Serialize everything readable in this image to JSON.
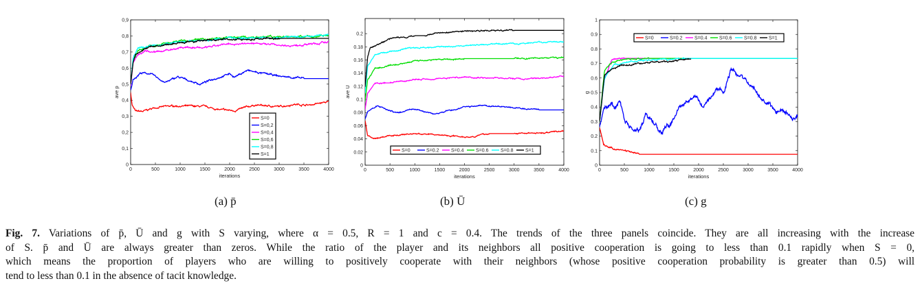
{
  "chart_data": [
    {
      "type": "line",
      "panel": "a",
      "xlabel": "iterations",
      "ylabel": "ave p",
      "xlim": [
        0,
        4000
      ],
      "ylim": [
        0,
        0.9
      ],
      "xticks": [
        0,
        500,
        1000,
        1500,
        2000,
        2500,
        3000,
        3500,
        4000
      ],
      "xtick_labels": [
        "0",
        "500",
        "1000",
        "1500",
        "2000",
        "2500",
        "3000",
        "3500",
        "4000"
      ],
      "yticks": [
        0,
        0.1,
        0.2,
        0.3,
        0.4,
        0.5,
        0.6,
        0.7,
        0.8,
        0.9
      ],
      "ytick_labels": [
        "0",
        "0,1",
        "0,2",
        "0,3",
        "0,4",
        "0,5",
        "0,6",
        "0,7",
        "0,8",
        "0,9"
      ],
      "legend_placement": "lower-right-center, vertical",
      "series": [
        {
          "name": "S=0",
          "color": "#ff0000",
          "x": [
            0,
            30,
            100,
            250,
            500,
            900,
            1500,
            1800,
            2100,
            2500,
            3000,
            3300,
            3600,
            4000
          ],
          "y": [
            0.45,
            0.37,
            0.33,
            0.33,
            0.355,
            0.365,
            0.36,
            0.34,
            0.335,
            0.37,
            0.36,
            0.375,
            0.37,
            0.39
          ]
        },
        {
          "name": "S=0,2",
          "color": "#0000ff",
          "x": [
            0,
            50,
            200,
            400,
            700,
            950,
            1400,
            1700,
            2000,
            2100,
            2350,
            2600,
            3000,
            3500,
            4000
          ],
          "y": [
            0.46,
            0.53,
            0.57,
            0.565,
            0.51,
            0.545,
            0.5,
            0.535,
            0.565,
            0.545,
            0.585,
            0.57,
            0.55,
            0.535,
            0.535
          ]
        },
        {
          "name": "S=0,4",
          "color": "#ff00ff",
          "x": [
            0,
            50,
            150,
            300,
            600,
            1000,
            1500,
            2000,
            2500,
            3300,
            4000
          ],
          "y": [
            0.49,
            0.63,
            0.69,
            0.71,
            0.7,
            0.73,
            0.725,
            0.75,
            0.755,
            0.74,
            0.76
          ]
        },
        {
          "name": "S=0,6",
          "color": "#00dd00",
          "x": [
            0,
            50,
            150,
            400,
            1000,
            2000,
            3000,
            4000
          ],
          "y": [
            0.5,
            0.65,
            0.71,
            0.74,
            0.77,
            0.79,
            0.795,
            0.8
          ]
        },
        {
          "name": "S=0,8",
          "color": "#00ffff",
          "x": [
            0,
            50,
            150,
            400,
            1000,
            2000,
            3000,
            4000
          ],
          "y": [
            0.5,
            0.66,
            0.72,
            0.74,
            0.76,
            0.785,
            0.79,
            0.805
          ]
        },
        {
          "name": "S=1",
          "color": "#000000",
          "x": [
            0,
            50,
            100,
            400,
            1000,
            1500,
            2000,
            3000,
            4000
          ],
          "y": [
            0.5,
            0.64,
            0.69,
            0.735,
            0.755,
            0.77,
            0.78,
            0.785,
            0.785
          ]
        }
      ]
    },
    {
      "type": "line",
      "panel": "b",
      "xlabel": "iterations",
      "ylabel": "ave U",
      "xlim": [
        0,
        4000
      ],
      "ylim": [
        0,
        0.223
      ],
      "xticks": [
        0,
        500,
        1000,
        1500,
        2000,
        2500,
        3000,
        3500,
        4000
      ],
      "xtick_labels": [
        "0",
        "500",
        "1000",
        "1500",
        "2000",
        "2500",
        "3000",
        "3500",
        "4000"
      ],
      "yticks": [
        0,
        0.02,
        0.04,
        0.06,
        0.08,
        0.1,
        0.12,
        0.14,
        0.16,
        0.18,
        0.2
      ],
      "ytick_labels": [
        "0",
        "0.02",
        "0.04",
        "0.06",
        "0.08",
        "0.1",
        "0.12",
        "0.14",
        "0.16",
        "0.18",
        "0.2"
      ],
      "legend_placement": "bottom, horizontal",
      "series": [
        {
          "name": "S=0",
          "color": "#ff0000",
          "x": [
            0,
            50,
            150,
            300,
            500,
            1000,
            1500,
            2100,
            2500,
            3000,
            3500,
            4000
          ],
          "y": [
            0.068,
            0.045,
            0.04,
            0.042,
            0.045,
            0.048,
            0.046,
            0.043,
            0.048,
            0.048,
            0.049,
            0.052
          ]
        },
        {
          "name": "S=0.2",
          "color": "#0000ff",
          "x": [
            0,
            50,
            250,
            650,
            950,
            1400,
            2000,
            2350,
            3000,
            3500,
            4000
          ],
          "y": [
            0.07,
            0.082,
            0.09,
            0.079,
            0.086,
            0.078,
            0.088,
            0.091,
            0.087,
            0.084,
            0.084
          ]
        },
        {
          "name": "S=0.4",
          "color": "#ff00ff",
          "x": [
            0,
            50,
            200,
            500,
            1000,
            2000,
            3300,
            4000
          ],
          "y": [
            0.085,
            0.11,
            0.125,
            0.125,
            0.13,
            0.134,
            0.131,
            0.135
          ]
        },
        {
          "name": "S=0.6",
          "color": "#00dd00",
          "x": [
            0,
            50,
            200,
            600,
            1000,
            2000,
            3000,
            4000
          ],
          "y": [
            0.097,
            0.13,
            0.147,
            0.152,
            0.159,
            0.162,
            0.162,
            0.164
          ]
        },
        {
          "name": "S=0.8",
          "color": "#00ffff",
          "x": [
            0,
            50,
            200,
            600,
            1000,
            2000,
            3000,
            4000
          ],
          "y": [
            0.11,
            0.15,
            0.168,
            0.174,
            0.178,
            0.182,
            0.185,
            0.188
          ]
        },
        {
          "name": "S=1",
          "color": "#000000",
          "x": [
            0,
            50,
            100,
            500,
            1000,
            1200,
            1300,
            2000,
            3000,
            4000
          ],
          "y": [
            0.12,
            0.165,
            0.178,
            0.192,
            0.197,
            0.197,
            0.2,
            0.204,
            0.205,
            0.205
          ]
        }
      ]
    },
    {
      "type": "line",
      "panel": "c",
      "xlabel": "iterations",
      "ylabel": "g",
      "xlim": [
        0,
        4000
      ],
      "ylim": [
        0,
        1
      ],
      "xticks": [
        0,
        500,
        1000,
        1500,
        2000,
        2500,
        3000,
        3500,
        4000
      ],
      "xtick_labels": [
        "0",
        "500",
        "1000",
        "1500",
        "2000",
        "2500",
        "3000",
        "3500",
        "4000"
      ],
      "yticks": [
        0,
        0.1,
        0.2,
        0.3,
        0.4,
        0.5,
        0.6,
        0.7,
        0.8,
        0.9,
        1
      ],
      "ytick_labels": [
        "0",
        "0.1",
        "0.2",
        "0.3",
        "0.4",
        "0.5",
        "0.6",
        "0.7",
        "0.8",
        "0.9",
        "1"
      ],
      "legend_placement": "top, horizontal",
      "series": [
        {
          "name": "S=0",
          "color": "#ff0000",
          "x": [
            0,
            80,
            300,
            500,
            700,
            800,
            4000
          ],
          "y": [
            0.26,
            0.14,
            0.11,
            0.1,
            0.08,
            0.075,
            0.075
          ]
        },
        {
          "name": "S=0.2",
          "color": "#0000ff",
          "x": [
            0,
            100,
            250,
            300,
            400,
            500,
            700,
            800,
            950,
            1250,
            1400,
            1700,
            1900,
            2100,
            2350,
            2500,
            2650,
            3000,
            3300,
            3600,
            3800,
            3900,
            4000
          ],
          "y": [
            0.27,
            0.4,
            0.43,
            0.38,
            0.44,
            0.33,
            0.24,
            0.25,
            0.35,
            0.23,
            0.27,
            0.43,
            0.5,
            0.4,
            0.52,
            0.5,
            0.66,
            0.57,
            0.45,
            0.38,
            0.36,
            0.32,
            0.35
          ]
        },
        {
          "name": "S=0.4",
          "color": "#ff00ff",
          "x": [
            0,
            100,
            250,
            500,
            4000
          ],
          "y": [
            0.3,
            0.6,
            0.73,
            0.735,
            0.735
          ]
        },
        {
          "name": "S=0.6",
          "color": "#00dd00",
          "x": [
            0,
            100,
            250,
            500,
            1000,
            4000
          ],
          "y": [
            0.3,
            0.65,
            0.71,
            0.73,
            0.735,
            0.735
          ]
        },
        {
          "name": "S=0.8",
          "color": "#00ffff",
          "x": [
            0,
            100,
            300,
            800,
            1700,
            4000
          ],
          "y": [
            0.3,
            0.6,
            0.69,
            0.72,
            0.735,
            0.735
          ]
        },
        {
          "name": "S=1",
          "color": "#000000",
          "x": [
            0,
            100,
            300,
            700,
            1500,
            1800,
            1850
          ],
          "y": [
            0.3,
            0.62,
            0.67,
            0.7,
            0.715,
            0.73,
            0.73
          ]
        }
      ]
    }
  ],
  "subcaptions": [
    "(a)  p̄",
    "(b)  Ū",
    "(c)  g"
  ],
  "caption": {
    "label": "Fig. 7.",
    "lines": [
      " Variations of p̄, Ū and g with S varying, where α = 0.5, R = 1 and c = 0.4. The trends of the three panels coincide. They are all increasing with the increase",
      "of S. p̄ and Ū are always greater than zeros. While the ratio of the player and its neighbors all positive cooperation is going to less than 0.1 rapidly when S = 0,",
      "which means the proportion of players who are willing to positively cooperate with their neighbors (whose positive cooperation probability is greater than 0.5) will",
      "tend to less than 0.1 in the absence of tacit knowledge."
    ]
  }
}
